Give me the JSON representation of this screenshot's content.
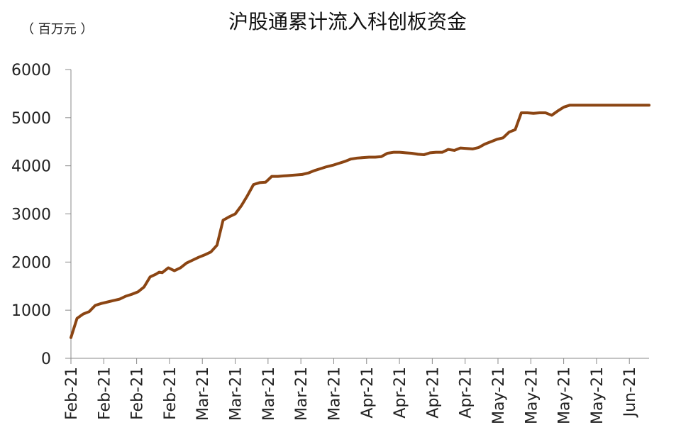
{
  "chart_data": {
    "type": "line",
    "title": "沪股通累计流入科创板资金",
    "unit_label": "（ 百万元 ）",
    "ylim": [
      0,
      6000
    ],
    "y_ticks": [
      "0",
      "1000",
      "2000",
      "3000",
      "4000",
      "5000",
      "6000"
    ],
    "x_tick_labels": [
      "Feb-21",
      "Feb-21",
      "Feb-21",
      "Feb-21",
      "Mar-21",
      "Mar-21",
      "Mar-21",
      "Mar-21",
      "Mar-21",
      "Apr-21",
      "Apr-21",
      "Apr-21",
      "Apr-21",
      "May-21",
      "May-21",
      "May-21",
      "May-21",
      "Jun-21"
    ],
    "grid": false,
    "series": [
      {
        "color": "#8B4513",
        "x": [
          0,
          2,
          4,
          6,
          8,
          10,
          12,
          14,
          16,
          18,
          20,
          22,
          24,
          26,
          27,
          28,
          29,
          30,
          32,
          34,
          36,
          37,
          38,
          40,
          42,
          44,
          46,
          47,
          48,
          50,
          52,
          54,
          56,
          58,
          60,
          62,
          64,
          66,
          68,
          70,
          71,
          72,
          74,
          76,
          78,
          80,
          82,
          84,
          86,
          88,
          90,
          92,
          94,
          96,
          98,
          100,
          102,
          104,
          106,
          108,
          110,
          112,
          114,
          116,
          118,
          120,
          122,
          124,
          126,
          128,
          130,
          132,
          134,
          136,
          138,
          140,
          142,
          144,
          146,
          148,
          150,
          152,
          154,
          156,
          158,
          160,
          162,
          164,
          166,
          168,
          170,
          172,
          174,
          176,
          177,
          178,
          180,
          182,
          184,
          186,
          188,
          190
        ],
        "values": [
          430,
          830,
          920,
          970,
          1100,
          1140,
          1170,
          1200,
          1230,
          1290,
          1330,
          1380,
          1480,
          1690,
          1720,
          1750,
          1790,
          1780,
          1880,
          1820,
          1880,
          1930,
          1980,
          2040,
          2100,
          2150,
          2210,
          2280,
          2350,
          2870,
          2940,
          3000,
          3170,
          3380,
          3610,
          3650,
          3660,
          3780,
          3780,
          3790,
          3795,
          3800,
          3810,
          3820,
          3850,
          3900,
          3940,
          3980,
          4010,
          4050,
          4090,
          4140,
          4160,
          4170,
          4180,
          4180,
          4190,
          4260,
          4280,
          4280,
          4270,
          4260,
          4240,
          4230,
          4270,
          4280,
          4280,
          4340,
          4320,
          4370,
          4360,
          4350,
          4380,
          4450,
          4500,
          4550,
          4580,
          4700,
          4750,
          5100,
          5100,
          5090,
          5100,
          5100,
          5050,
          5140,
          5220,
          5260,
          5260,
          5260,
          5260,
          5260,
          5260,
          5260,
          5260,
          5260,
          5260,
          5260,
          5260,
          5260,
          5260,
          5260
        ]
      }
    ]
  }
}
